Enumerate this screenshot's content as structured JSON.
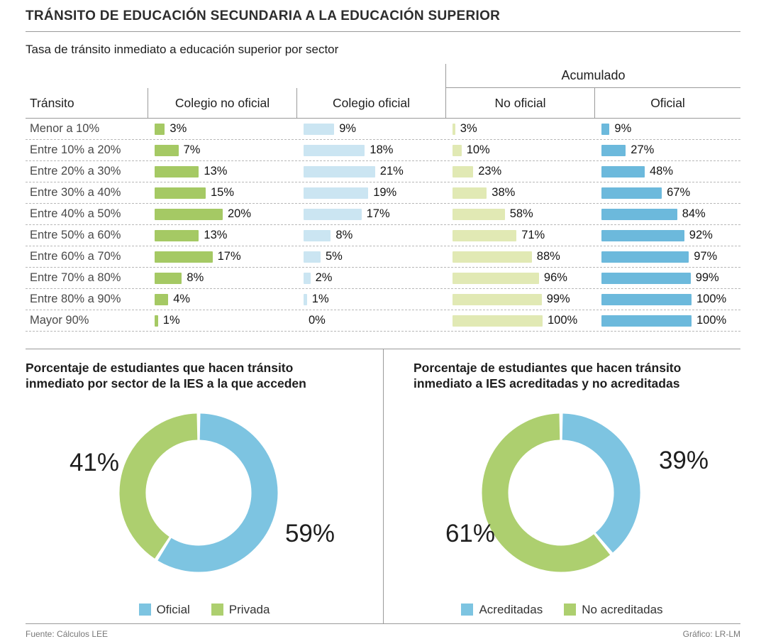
{
  "title": "TRÁNSITO DE EDUCACIÓN SECUNDARIA A LA EDUCACIÓN SUPERIOR",
  "footer": {
    "source": "Fuente: Cálculos LEE",
    "credit": "Gráfico: LR-LM"
  },
  "chart_data": [
    {
      "type": "table",
      "title": "Tasa de tránsito inmediato a educación superior por sector",
      "group_header": "Acumulado",
      "columns": [
        "Tránsito",
        "Colegio no oficial",
        "Colegio oficial",
        "No oficial",
        "Oficial"
      ],
      "categories": [
        "Menor a 10%",
        "Entre 10% a 20%",
        "Entre 20% a 30%",
        "Entre 30% a 40%",
        "Entre 40% a 50%",
        "Entre 50% a 60%",
        "Entre 60% a 70%",
        "Entre 70% a 80%",
        "Entre 80% a 90%",
        "Mayor 90%"
      ],
      "unit": "%",
      "series": [
        {
          "name": "Colegio no oficial",
          "color": "#a5c964",
          "values": [
            3,
            7,
            13,
            15,
            20,
            13,
            17,
            8,
            4,
            1
          ]
        },
        {
          "name": "Colegio oficial",
          "color": "#cbe5f2",
          "values": [
            9,
            18,
            21,
            19,
            17,
            8,
            5,
            2,
            1,
            0
          ]
        },
        {
          "name": "Acumulado no oficial",
          "color": "#e1e9b4",
          "values": [
            3,
            10,
            23,
            38,
            58,
            71,
            88,
            96,
            99,
            100
          ]
        },
        {
          "name": "Acumulado oficial",
          "color": "#6cb9dc",
          "values": [
            9,
            27,
            48,
            67,
            84,
            92,
            97,
            99,
            100,
            100
          ]
        }
      ]
    },
    {
      "type": "pie",
      "title": "Porcentaje de estudiantes que hacen tránsito inmediato por sector de la IES a la que acceden",
      "labels": [
        "Oficial",
        "Privada"
      ],
      "values": [
        59,
        41
      ],
      "colors": [
        "#7dc4e1",
        "#adcf6f"
      ],
      "legend_position": "bottom"
    },
    {
      "type": "pie",
      "title": "Porcentaje de estudiantes que hacen tránsito inmediato a IES acreditadas y no acreditadas",
      "labels": [
        "Acreditadas",
        "No acreditadas"
      ],
      "values": [
        39,
        61
      ],
      "colors": [
        "#7dc4e1",
        "#adcf6f"
      ],
      "legend_position": "bottom"
    }
  ]
}
